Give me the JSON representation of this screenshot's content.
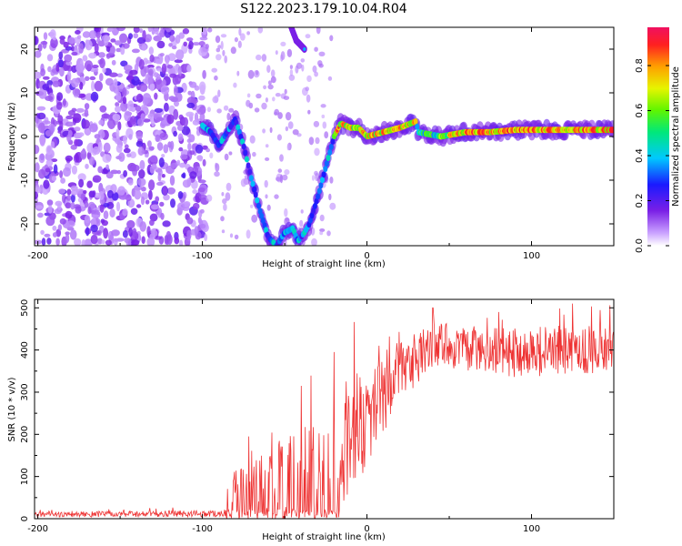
{
  "title": "S122.2023.179.10.04.R04",
  "chart_data": [
    {
      "type": "heatmap",
      "xlabel": "Height of straight line (km)",
      "ylabel": "Frequency (Hz)",
      "xlim": [
        -202,
        150
      ],
      "ylim": [
        -25,
        25
      ],
      "x_ticks": [
        -200,
        -100,
        0,
        100
      ],
      "y_ticks": [
        -20,
        -10,
        0,
        10,
        20
      ],
      "x_tick_labels": [
        "-200",
        "-100",
        "0",
        "100"
      ],
      "y_tick_labels": [
        "-20",
        "-10",
        "0",
        "10",
        "20"
      ],
      "colorbar": {
        "label": "Normalized spectral amplitude",
        "range": [
          0,
          0.97
        ],
        "ticks": [
          0.0,
          0.2,
          0.4,
          0.6,
          0.8
        ],
        "tick_labels": [
          "0.0",
          "0.2",
          "0.4",
          "0.6",
          "0.8"
        ],
        "colormap": "rainbow"
      },
      "noise_region": {
        "x_range": [
          -202,
          -98
        ],
        "y_range": [
          -25,
          25
        ]
      },
      "ridge": [
        {
          "x": -100,
          "y": 2.5
        },
        {
          "x": -95,
          "y": 1
        },
        {
          "x": -90,
          "y": -2
        },
        {
          "x": -85,
          "y": 1
        },
        {
          "x": -80,
          "y": 4
        },
        {
          "x": -75,
          "y": -2
        },
        {
          "x": -70,
          "y": -10
        },
        {
          "x": -65,
          "y": -17
        },
        {
          "x": -60,
          "y": -23
        },
        {
          "x": -55,
          "y": -25
        },
        {
          "x": -50,
          "y": -22
        },
        {
          "x": -45,
          "y": -21
        },
        {
          "x": -42,
          "y": -24
        },
        {
          "x": -38,
          "y": -22
        },
        {
          "x": -35,
          "y": -20
        },
        {
          "x": -30,
          "y": -14
        },
        {
          "x": -25,
          "y": -7
        },
        {
          "x": -20,
          "y": 0
        },
        {
          "x": -16,
          "y": 3
        },
        {
          "x": -10,
          "y": 2
        },
        {
          "x": -5,
          "y": 2
        },
        {
          "x": 0,
          "y": 0
        },
        {
          "x": 10,
          "y": 1
        },
        {
          "x": 20,
          "y": 2
        },
        {
          "x": 30,
          "y": 3.5
        },
        {
          "x": 31,
          "y": 1
        },
        {
          "x": 45,
          "y": 0
        },
        {
          "x": 60,
          "y": 1
        },
        {
          "x": 75,
          "y": 1
        },
        {
          "x": 90,
          "y": 1.5
        },
        {
          "x": 110,
          "y": 1.5
        },
        {
          "x": 130,
          "y": 1.5
        },
        {
          "x": 150,
          "y": 1.5
        }
      ],
      "upper_branch": [
        {
          "x": -46,
          "y": 25
        },
        {
          "x": -43,
          "y": 22
        },
        {
          "x": -38,
          "y": 20
        }
      ]
    },
    {
      "type": "line",
      "xlabel": "Height of straight line (km)",
      "ylabel": "SNR (10 * v/v)",
      "xlim": [
        -202,
        150
      ],
      "ylim": [
        0,
        520
      ],
      "x_ticks": [
        -200,
        -100,
        0,
        100
      ],
      "y_ticks": [
        0,
        100,
        200,
        300,
        400,
        500
      ],
      "x_tick_labels": [
        "-200",
        "-100",
        "0",
        "100"
      ],
      "y_tick_labels": [
        "0",
        "100",
        "200",
        "300",
        "400",
        "500"
      ],
      "color": "#ee3333",
      "envelope": [
        {
          "x": -202,
          "mean": 10,
          "spread": 6
        },
        {
          "x": -90,
          "mean": 12,
          "spread": 8
        },
        {
          "x": -85,
          "mean": 35,
          "spread": 40
        },
        {
          "x": -70,
          "mean": 60,
          "spread": 90
        },
        {
          "x": -55,
          "mean": 75,
          "spread": 110
        },
        {
          "x": -35,
          "mean": 100,
          "spread": 130
        },
        {
          "x": -20,
          "mean": 150,
          "spread": 150
        },
        {
          "x": -10,
          "mean": 200,
          "spread": 140
        },
        {
          "x": 0,
          "mean": 240,
          "spread": 120
        },
        {
          "x": 15,
          "mean": 320,
          "spread": 90
        },
        {
          "x": 30,
          "mean": 370,
          "spread": 60
        },
        {
          "x": 40,
          "mean": 420,
          "spread": 60
        },
        {
          "x": 60,
          "mean": 400,
          "spread": 50
        },
        {
          "x": 90,
          "mean": 395,
          "spread": 60
        },
        {
          "x": 120,
          "mean": 400,
          "spread": 60
        },
        {
          "x": 150,
          "mean": 400,
          "spread": 55
        }
      ],
      "peaks": [
        {
          "x": -40,
          "y": 315
        },
        {
          "x": -20,
          "y": 395
        },
        {
          "x": 40,
          "y": 500
        },
        {
          "x": 125,
          "y": 510
        },
        {
          "x": 80,
          "y": 490
        }
      ]
    }
  ]
}
